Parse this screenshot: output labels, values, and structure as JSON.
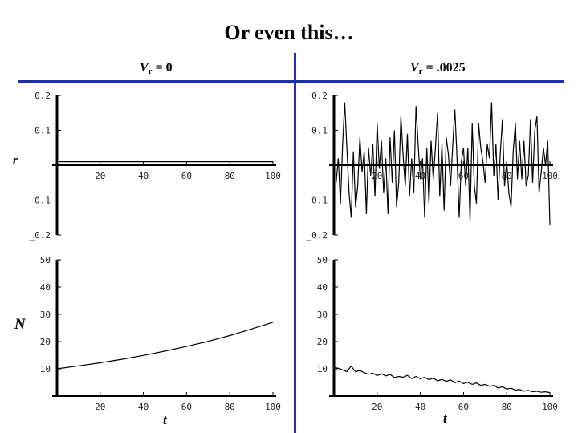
{
  "title": "Or even this…",
  "columns": [
    {
      "v": "V",
      "sub": "r",
      "value": " = 0"
    },
    {
      "v": "V",
      "sub": "r",
      "value": " = .0025"
    }
  ],
  "row_labels": {
    "r": "r",
    "N": "N"
  },
  "x_label": "t",
  "chart_data": [
    {
      "type": "line",
      "panel": "r, Vr = 0",
      "xlim": [
        0,
        100
      ],
      "ylim": [
        -0.2,
        0.2
      ],
      "x_ticks": [
        20,
        40,
        60,
        80,
        100
      ],
      "y_ticks": [
        {
          "v": 0.2,
          "label": "0.2"
        },
        {
          "v": 0.1,
          "label": "0.1"
        },
        {
          "v": -0.1,
          "label": "0.1"
        },
        {
          "v": -0.2,
          "label": "_0.2"
        }
      ],
      "series": [
        {
          "x": [
            1,
            100
          ],
          "y": [
            0.01,
            0.01
          ]
        }
      ]
    },
    {
      "type": "line",
      "panel": "r, Vr = .0025",
      "xlim": [
        0,
        100
      ],
      "ylim": [
        -0.2,
        0.2
      ],
      "x_ticks": [
        20,
        40,
        60,
        80,
        100
      ],
      "y_ticks": [
        {
          "v": 0.2,
          "label": "0.2"
        },
        {
          "v": 0.1,
          "label": "0.1"
        },
        {
          "v": -0.1,
          "label": "0.1"
        },
        {
          "v": -0.2,
          "label": "_0.2"
        }
      ],
      "series": [
        {
          "x": [
            1,
            2,
            3,
            4,
            5,
            6,
            7,
            8,
            9,
            10,
            11,
            12,
            13,
            14,
            15,
            16,
            17,
            18,
            19,
            20,
            21,
            22,
            23,
            24,
            25,
            26,
            27,
            28,
            29,
            30,
            31,
            32,
            33,
            34,
            35,
            36,
            37,
            38,
            39,
            40,
            41,
            42,
            43,
            44,
            45,
            46,
            47,
            48,
            49,
            50,
            51,
            52,
            53,
            54,
            55,
            56,
            57,
            58,
            59,
            60,
            61,
            62,
            63,
            64,
            65,
            66,
            67,
            68,
            69,
            70,
            71,
            72,
            73,
            74,
            75,
            76,
            77,
            78,
            79,
            80,
            81,
            82,
            83,
            84,
            85,
            86,
            87,
            88,
            89,
            90,
            91,
            92,
            93,
            94,
            95,
            96,
            97,
            98,
            99,
            100
          ],
          "y": [
            -0.05,
            0.02,
            -0.11,
            0.06,
            0.18,
            0.05,
            -0.08,
            -0.15,
            0.04,
            -0.12,
            -0.06,
            0.08,
            -0.02,
            0.04,
            -0.14,
            0.05,
            -0.03,
            0.06,
            -0.09,
            0.12,
            -0.01,
            0.07,
            -0.08,
            0.02,
            -0.14,
            0.08,
            -0.05,
            0.1,
            -0.12,
            -0.05,
            0.14,
            0.03,
            -0.06,
            0.09,
            -0.09,
            0.02,
            -0.08,
            0.17,
            0.06,
            -0.04,
            0.02,
            -0.15,
            0.05,
            -0.11,
            0.07,
            -0.04,
            0.05,
            0.15,
            -0.09,
            0.06,
            -0.13,
            0.08,
            0.03,
            -0.06,
            0.06,
            0.16,
            0.02,
            -0.15,
            0.01,
            0.05,
            -0.06,
            0.05,
            -0.16,
            0.12,
            -0.06,
            -0.11,
            0.12,
            0.05,
            0.01,
            -0.05,
            0.06,
            0.02,
            0.18,
            -0.03,
            0.06,
            -0.1,
            0.03,
            0.13,
            -0.06,
            0.01,
            -0.08,
            -0.12,
            0.04,
            0.12,
            -0.04,
            0.07,
            -0.04,
            0.07,
            -0.06,
            -0.03,
            0.13,
            -0.05,
            0.1,
            0.14,
            -0.08,
            -0.02,
            0.05,
            0.0,
            0.07,
            -0.17
          ]
        }
      ]
    },
    {
      "type": "line",
      "panel": "N, Vr = 0",
      "xlim": [
        0,
        100
      ],
      "ylim": [
        0,
        50
      ],
      "x_ticks": [
        20,
        40,
        60,
        80,
        100
      ],
      "y_ticks": [
        {
          "v": 10,
          "label": "10"
        },
        {
          "v": 20,
          "label": "20"
        },
        {
          "v": 30,
          "label": "30"
        },
        {
          "v": 40,
          "label": "40"
        },
        {
          "v": 50,
          "label": "50"
        }
      ],
      "series": [
        {
          "x": [
            0,
            10,
            20,
            30,
            40,
            50,
            60,
            70,
            80,
            90,
            100
          ],
          "y": [
            10,
            11.1,
            12.2,
            13.5,
            14.9,
            16.5,
            18.2,
            20.1,
            22.2,
            24.6,
            27.1
          ]
        }
      ]
    },
    {
      "type": "line",
      "panel": "N, Vr = .0025",
      "xlim": [
        0,
        100
      ],
      "ylim": [
        0,
        50
      ],
      "x_ticks": [
        20,
        40,
        60,
        80,
        100
      ],
      "y_ticks": [
        {
          "v": 10,
          "label": "10"
        },
        {
          "v": 20,
          "label": "20"
        },
        {
          "v": 30,
          "label": "30"
        },
        {
          "v": 40,
          "label": "40"
        },
        {
          "v": 50,
          "label": "50"
        }
      ],
      "series": [
        {
          "x": [
            0,
            2,
            4,
            6,
            8,
            10,
            12,
            14,
            16,
            18,
            20,
            22,
            24,
            26,
            28,
            30,
            32,
            34,
            36,
            38,
            40,
            42,
            44,
            46,
            48,
            50,
            52,
            54,
            56,
            58,
            60,
            62,
            64,
            66,
            68,
            70,
            72,
            74,
            76,
            78,
            80,
            82,
            84,
            86,
            88,
            90,
            92,
            94,
            96,
            98,
            100
          ],
          "y": [
            10.5,
            10.2,
            9.6,
            9.0,
            11.0,
            8.9,
            9.4,
            8.6,
            8.0,
            8.4,
            7.5,
            8.2,
            7.4,
            7.9,
            6.8,
            7.2,
            6.9,
            7.6,
            6.4,
            7.2,
            6.3,
            6.9,
            6.0,
            6.6,
            5.6,
            6.1,
            5.4,
            5.9,
            4.9,
            5.5,
            4.6,
            5.1,
            4.3,
            4.8,
            3.9,
            4.3,
            3.6,
            3.9,
            3.0,
            3.4,
            2.6,
            2.9,
            2.2,
            2.4,
            1.8,
            2.1,
            1.6,
            1.8,
            1.4,
            1.6,
            1.3
          ]
        }
      ]
    }
  ]
}
